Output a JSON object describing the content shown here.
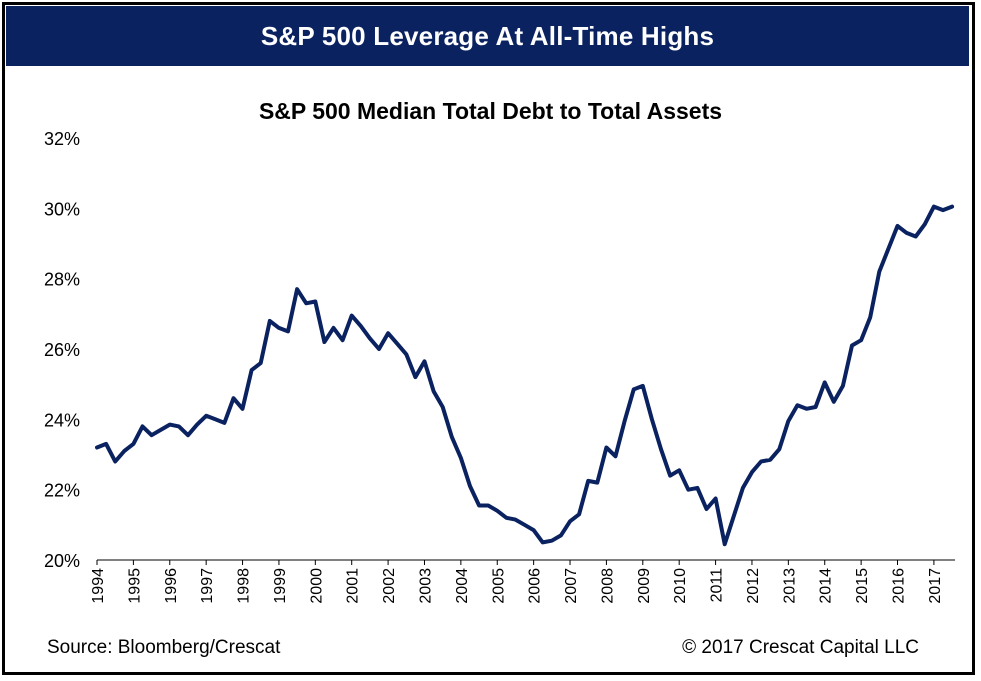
{
  "banner": {
    "title": "S&P 500 Leverage At All-Time Highs"
  },
  "footer": {
    "source": "Source: Bloomberg/Crescat",
    "copyright": "© 2017 Crescat Capital LLC"
  },
  "colors": {
    "banner_bg": "#0b2261",
    "line": "#0b2261"
  },
  "chart_data": {
    "type": "line",
    "title": "S&P 500 Median Total Debt to Total Assets",
    "xlabel": "",
    "ylabel": "",
    "y_unit": "%",
    "ylim": [
      20,
      32
    ],
    "yticks": [
      20,
      22,
      24,
      26,
      28,
      30,
      32
    ],
    "ytick_labels": [
      "20%",
      "22%",
      "24%",
      "26%",
      "28%",
      "30%",
      "32%"
    ],
    "xticks": [
      "1994",
      "1995",
      "1996",
      "1997",
      "1998",
      "1999",
      "2000",
      "2001",
      "2002",
      "2003",
      "2004",
      "2005",
      "2006",
      "2007",
      "2008",
      "2009",
      "2010",
      "2011",
      "2012",
      "2013",
      "2014",
      "2015",
      "2016",
      "2017"
    ],
    "grid": false,
    "legend": "none",
    "series": [
      {
        "x": [
          1994.0,
          1994.25,
          1994.5,
          1994.75,
          1995.0,
          1995.25,
          1995.5,
          1995.75,
          1996.0,
          1996.25,
          1996.5,
          1996.75,
          1997.0,
          1997.25,
          1997.5,
          1997.75,
          1998.0,
          1998.25,
          1998.5,
          1998.75,
          1999.0,
          1999.25,
          1999.5,
          1999.75,
          2000.0,
          2000.25,
          2000.5,
          2000.75,
          2001.0,
          2001.25,
          2001.5,
          2001.75,
          2002.0,
          2002.25,
          2002.5,
          2002.75,
          2003.0,
          2003.25,
          2003.5,
          2003.75,
          2004.0,
          2004.25,
          2004.5,
          2004.75,
          2005.0,
          2005.25,
          2005.5,
          2005.75,
          2006.0,
          2006.25,
          2006.5,
          2006.75,
          2007.0,
          2007.25,
          2007.5,
          2007.75,
          2008.0,
          2008.25,
          2008.5,
          2008.75,
          2009.0,
          2009.25,
          2009.5,
          2009.75,
          2010.0,
          2010.25,
          2010.5,
          2010.75,
          2011.0,
          2011.25,
          2011.5,
          2011.75,
          2012.0,
          2012.25,
          2012.5,
          2012.75,
          2013.0,
          2013.25,
          2013.5,
          2013.75,
          2014.0,
          2014.25,
          2014.5,
          2014.75,
          2015.0,
          2015.25,
          2015.5,
          2015.75,
          2016.0,
          2016.25,
          2016.5,
          2016.75,
          2017.0,
          2017.25,
          2017.5
        ],
        "values": [
          23.2,
          23.3,
          22.8,
          23.1,
          23.3,
          23.8,
          23.55,
          23.7,
          23.85,
          23.8,
          23.55,
          23.85,
          24.1,
          24.0,
          23.9,
          24.6,
          24.3,
          25.4,
          25.6,
          26.8,
          26.6,
          26.5,
          27.7,
          27.3,
          27.35,
          26.2,
          26.6,
          26.25,
          26.95,
          26.65,
          26.3,
          26.0,
          26.45,
          26.15,
          25.85,
          25.2,
          25.65,
          24.8,
          24.35,
          23.5,
          22.9,
          22.1,
          21.55,
          21.55,
          21.4,
          21.2,
          21.15,
          21.0,
          20.85,
          20.5,
          20.55,
          20.7,
          21.1,
          21.3,
          22.25,
          22.2,
          23.2,
          22.95,
          23.95,
          24.85,
          24.95,
          24.0,
          23.15,
          22.4,
          22.55,
          22.0,
          22.05,
          21.45,
          21.75,
          20.45,
          21.25,
          22.05,
          22.5,
          22.8,
          22.85,
          23.15,
          23.95,
          24.4,
          24.3,
          24.35,
          25.05,
          24.5,
          24.95,
          26.1,
          26.25,
          26.9,
          28.2,
          28.85,
          29.5,
          29.3,
          29.2,
          29.55,
          30.05,
          29.95,
          30.05
        ]
      }
    ]
  }
}
